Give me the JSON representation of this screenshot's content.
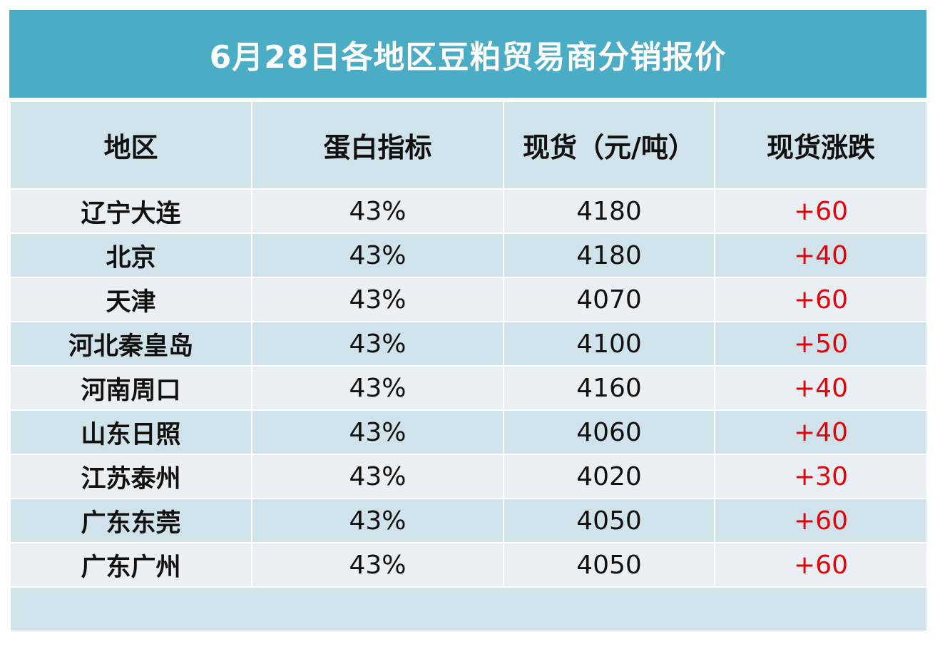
{
  "title": "6月28日各地区豆粕贸易商分销报价",
  "headers": [
    "地区",
    "蛋白指标",
    "现货（元/吨）",
    "现货涨跌"
  ],
  "rows": [
    {
      "region": "辽宁大连",
      "protein": "43%",
      "price": "4180",
      "change": "+60"
    },
    {
      "region": "北京",
      "protein": "43%",
      "price": "4180",
      "change": "+40"
    },
    {
      "region": "天津",
      "protein": "43%",
      "price": "4070",
      "change": "+60"
    },
    {
      "region": "河北秦皇岛",
      "protein": "43%",
      "price": "4100",
      "change": "+50"
    },
    {
      "region": "河南周口",
      "protein": "43%",
      "price": "4160",
      "change": "+40"
    },
    {
      "region": "山东日照",
      "protein": "43%",
      "price": "4060",
      "change": "+40"
    },
    {
      "region": "江苏泰州",
      "protein": "43%",
      "price": "4020",
      "change": "+30"
    },
    {
      "region": "广东东莞",
      "protein": "43%",
      "price": "4050",
      "change": "+60"
    },
    {
      "region": "广东广州",
      "protein": "43%",
      "price": "4050",
      "change": "+60"
    }
  ],
  "colors": {
    "title_bg": "#4bacc6",
    "row_light": "#e9eff3",
    "row_dark": "#d0e3ea",
    "change_text": "#e8000b"
  }
}
